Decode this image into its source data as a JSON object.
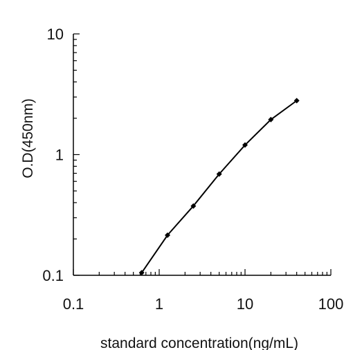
{
  "chart_data": {
    "type": "line",
    "title": "",
    "xlabel": "standard concentration(ng/mL)",
    "ylabel": "O.D(450nm)",
    "xscale": "log",
    "yscale": "log",
    "xlim": [
      0.1,
      100
    ],
    "ylim": [
      0.1,
      10
    ],
    "x_ticks": [
      0.1,
      1,
      10,
      100
    ],
    "x_tick_labels": [
      "0.1",
      "1",
      "10",
      "100"
    ],
    "y_ticks": [
      0.1,
      1,
      10
    ],
    "y_tick_labels": [
      "0.1",
      "1",
      "10"
    ],
    "grid": false,
    "legend": "none",
    "line_color": "#000000",
    "series": [
      {
        "x": [
          0.625,
          1.25,
          2.5,
          5,
          10,
          20,
          40
        ],
        "y": [
          0.105,
          0.215,
          0.375,
          0.69,
          1.2,
          1.95,
          2.8
        ]
      }
    ]
  }
}
